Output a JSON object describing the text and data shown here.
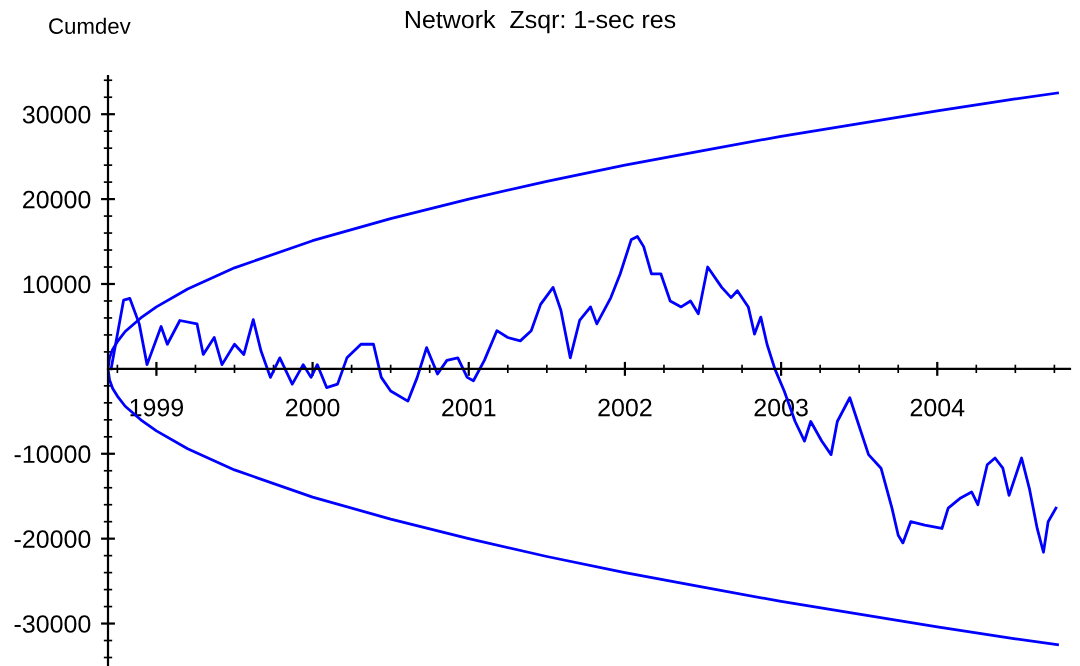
{
  "chart_data": {
    "type": "line",
    "title": "Network  Zsqr: 1-sec res",
    "ylabel": "Cumdev",
    "xlim": [
      1998.69,
      2004.85
    ],
    "ylim": [
      -35000,
      34500
    ],
    "xticks": [
      {
        "value": 1998.75,
        "label": null
      },
      1999,
      {
        "value": 1999.25,
        "label": null
      },
      {
        "value": 1999.5,
        "label": null
      },
      {
        "value": 1999.75,
        "label": null
      },
      2000,
      {
        "value": 2000.25,
        "label": null
      },
      {
        "value": 2000.5,
        "label": null
      },
      {
        "value": 2000.75,
        "label": null
      },
      2001,
      {
        "value": 2001.25,
        "label": null
      },
      {
        "value": 2001.5,
        "label": null
      },
      {
        "value": 2001.75,
        "label": null
      },
      2002,
      {
        "value": 2002.25,
        "label": null
      },
      {
        "value": 2002.5,
        "label": null
      },
      {
        "value": 2002.75,
        "label": null
      },
      2003,
      {
        "value": 2003.25,
        "label": null
      },
      {
        "value": 2003.5,
        "label": null
      },
      {
        "value": 2003.75,
        "label": null
      },
      2004,
      {
        "value": 2004.25,
        "label": null
      },
      {
        "value": 2004.5,
        "label": null
      },
      {
        "value": 2004.75,
        "label": null
      }
    ],
    "yticks": [
      {
        "value": -34000,
        "label": null
      },
      {
        "value": -32000,
        "label": null
      },
      -30000,
      {
        "value": -28000,
        "label": null
      },
      {
        "value": -26000,
        "label": null
      },
      {
        "value": -24000,
        "label": null
      },
      {
        "value": -22000,
        "label": null
      },
      -20000,
      {
        "value": -18000,
        "label": null
      },
      {
        "value": -16000,
        "label": null
      },
      {
        "value": -14000,
        "label": null
      },
      {
        "value": -12000,
        "label": null
      },
      -10000,
      {
        "value": -8000,
        "label": null
      },
      {
        "value": -6000,
        "label": null
      },
      {
        "value": -4000,
        "label": null
      },
      {
        "value": -2000,
        "label": null
      },
      {
        "value": 2000,
        "label": null
      },
      {
        "value": 4000,
        "label": null
      },
      {
        "value": 6000,
        "label": null
      },
      {
        "value": 8000,
        "label": null
      },
      10000,
      {
        "value": 12000,
        "label": null
      },
      {
        "value": 14000,
        "label": null
      },
      {
        "value": 16000,
        "label": null
      },
      {
        "value": 18000,
        "label": null
      },
      20000,
      {
        "value": 22000,
        "label": null
      },
      {
        "value": 24000,
        "label": null
      },
      {
        "value": 26000,
        "label": null
      },
      {
        "value": 28000,
        "label": null
      },
      30000,
      {
        "value": 32000,
        "label": null
      },
      {
        "value": 34000,
        "label": null
      }
    ],
    "series": [
      {
        "color": "#0000ff",
        "x": [
          2004.77,
          2004.5,
          2004.0,
          2003.5,
          2003.0,
          2002.5,
          2002.0,
          2001.5,
          2001.0,
          2000.5,
          2000.0,
          1999.5,
          1999.2,
          1999.0,
          1998.9,
          1998.8,
          1998.75,
          1998.72,
          1998.7,
          1998.69,
          1998.7,
          1998.72,
          1998.75,
          1998.8,
          1998.9,
          1999.0,
          1999.2,
          1999.5,
          2000.0,
          2000.5,
          2001.0,
          2001.5,
          2002.0,
          2002.5,
          2003.0,
          2003.5,
          2004.0,
          2004.5,
          2004.77
        ],
        "values": [
          32500,
          31800,
          30400,
          28900,
          27400,
          25700,
          24000,
          22100,
          20000,
          17700,
          15100,
          11900,
          9400,
          7300,
          6000,
          4400,
          3200,
          2300,
          1300,
          0,
          -1300,
          -2300,
          -3200,
          -4400,
          -6000,
          -7300,
          -9400,
          -11900,
          -15100,
          -17700,
          -20000,
          -22100,
          -24000,
          -25700,
          -27400,
          -28900,
          -30400,
          -31800,
          -32500
        ]
      },
      {
        "color": "#0000ff",
        "x": [
          1998.71,
          1998.79,
          1998.83,
          1998.89,
          1998.94,
          1999.03,
          1999.07,
          1999.15,
          1999.26,
          1999.3,
          1999.37,
          1999.42,
          1999.5,
          1999.56,
          1999.62,
          1999.67,
          1999.73,
          1999.79,
          1999.87,
          1999.94,
          1999.99,
          2000.03,
          2000.09,
          2000.16,
          2000.22,
          2000.31,
          2000.39,
          2000.44,
          2000.5,
          2000.61,
          2000.67,
          2000.73,
          2000.8,
          2000.86,
          2000.93,
          2000.99,
          2001.03,
          2001.1,
          2001.18,
          2001.25,
          2001.33,
          2001.4,
          2001.46,
          2001.54,
          2001.59,
          2001.65,
          2001.71,
          2001.78,
          2001.82,
          2001.91,
          2001.97,
          2002.04,
          2002.08,
          2002.12,
          2002.17,
          2002.23,
          2002.29,
          2002.36,
          2002.42,
          2002.47,
          2002.53,
          2002.62,
          2002.68,
          2002.72,
          2002.79,
          2002.83,
          2002.87,
          2002.91,
          2002.96,
          2003.02,
          2003.09,
          2003.15,
          2003.19,
          2003.26,
          2003.32,
          2003.36,
          2003.44,
          2003.49,
          2003.56,
          2003.64,
          2003.71,
          2003.75,
          2003.78,
          2003.83,
          2003.92,
          2004.03,
          2004.07,
          2004.15,
          2004.22,
          2004.26,
          2004.32,
          2004.37,
          2004.42,
          2004.46,
          2004.54,
          2004.59,
          2004.64,
          2004.68,
          2004.71,
          2004.76
        ],
        "values": [
          0,
          8100,
          8300,
          5300,
          500,
          5000,
          2900,
          5700,
          5300,
          1700,
          3700,
          500,
          2900,
          1700,
          5800,
          2100,
          -1000,
          1300,
          -1800,
          500,
          -1000,
          500,
          -2200,
          -1800,
          1300,
          2900,
          2900,
          -1000,
          -2600,
          -3800,
          -1000,
          2500,
          -600,
          1000,
          1300,
          -1000,
          -1400,
          1000,
          4500,
          3700,
          3300,
          4500,
          7600,
          9600,
          6900,
          1300,
          5700,
          7300,
          5300,
          8400,
          11200,
          15200,
          15600,
          14400,
          11200,
          11200,
          8000,
          7300,
          8000,
          6500,
          12000,
          9600,
          8400,
          9200,
          7300,
          4100,
          6100,
          2900,
          0,
          -2600,
          -6200,
          -8500,
          -6200,
          -8500,
          -10100,
          -6200,
          -3400,
          -6200,
          -10100,
          -11700,
          -16400,
          -19600,
          -20500,
          -18000,
          -18400,
          -18800,
          -16400,
          -15200,
          -14500,
          -16000,
          -11300,
          -10500,
          -11700,
          -14900,
          -10500,
          -14100,
          -18800,
          -21600,
          -18000,
          -16400
        ]
      }
    ]
  }
}
